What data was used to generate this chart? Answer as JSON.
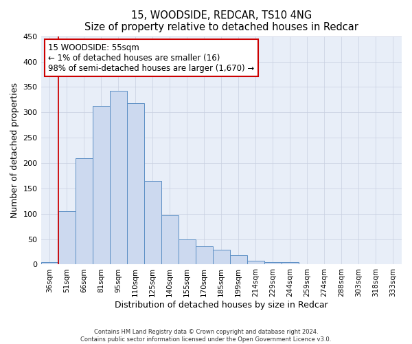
{
  "title": "15, WOODSIDE, REDCAR, TS10 4NG",
  "subtitle": "Size of property relative to detached houses in Redcar",
  "xlabel": "Distribution of detached houses by size in Redcar",
  "ylabel": "Number of detached properties",
  "bar_labels": [
    "36sqm",
    "51sqm",
    "66sqm",
    "81sqm",
    "95sqm",
    "110sqm",
    "125sqm",
    "140sqm",
    "155sqm",
    "170sqm",
    "185sqm",
    "199sqm",
    "214sqm",
    "229sqm",
    "244sqm",
    "259sqm",
    "274sqm",
    "288sqm",
    "303sqm",
    "318sqm",
    "333sqm"
  ],
  "bar_values": [
    5,
    105,
    210,
    313,
    343,
    318,
    165,
    97,
    50,
    36,
    29,
    18,
    8,
    5,
    5,
    1,
    0,
    0,
    0,
    0,
    0
  ],
  "bar_color": "#ccd9ef",
  "bar_edgecolor": "#5b8ec4",
  "property_line_x": 0.5,
  "property_line_color": "#cc0000",
  "annotation_title": "15 WOODSIDE: 55sqm",
  "annotation_line1": "← 1% of detached houses are smaller (16)",
  "annotation_line2": "98% of semi-detached houses are larger (1,670) →",
  "annotation_box_color": "#ffffff",
  "annotation_box_edgecolor": "#cc0000",
  "ylim": [
    0,
    450
  ],
  "yticks": [
    0,
    50,
    100,
    150,
    200,
    250,
    300,
    350,
    400,
    450
  ],
  "footer1": "Contains HM Land Registry data © Crown copyright and database right 2024.",
  "footer2": "Contains public sector information licensed under the Open Government Licence v3.0.",
  "background_color": "#ffffff",
  "plot_bg_color": "#e8eef8",
  "grid_color": "#c8cfe0"
}
